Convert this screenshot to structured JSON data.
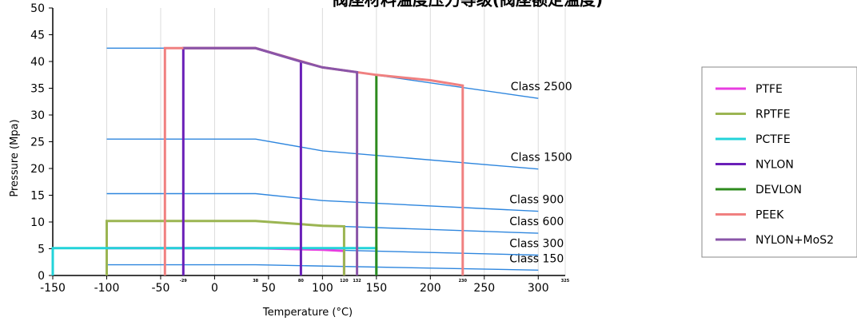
{
  "chart_data": {
    "type": "line",
    "title": "阀座材料温度压力等级(阀座额定温度)",
    "xlabel": "Temperature (°C)",
    "ylabel": "Pressure (Mpa)",
    "xlim": [
      -150,
      325
    ],
    "ylim": [
      0,
      50
    ],
    "x_ticks": [
      -150,
      -100,
      -50,
      0,
      50,
      100,
      150,
      200,
      250,
      300
    ],
    "y_ticks": [
      0,
      5,
      10,
      15,
      20,
      25,
      30,
      35,
      40,
      45,
      50
    ],
    "minor_tick_labels": [
      {
        "x": -29,
        "label": "-29"
      },
      {
        "x": 38,
        "label": "38"
      },
      {
        "x": 80,
        "label": "80"
      },
      {
        "x": 120,
        "label": "120"
      },
      {
        "x": 132,
        "label": "132"
      },
      {
        "x": 230,
        "label": "230"
      },
      {
        "x": 325,
        "label": "325"
      }
    ],
    "grid": "vertical",
    "class_color": "#2e86de",
    "class_lines": [
      {
        "name": "Class 150",
        "x": [
          -100,
          38,
          300
        ],
        "y": [
          2,
          2,
          1
        ]
      },
      {
        "name": "Class 300",
        "x": [
          -100,
          38,
          300
        ],
        "y": [
          5.1,
          5.1,
          3.8
        ]
      },
      {
        "name": "Class 600",
        "x": [
          -100,
          38,
          100,
          300
        ],
        "y": [
          10.2,
          10.2,
          9.3,
          7.9
        ]
      },
      {
        "name": "Class 900",
        "x": [
          -100,
          38,
          100,
          300
        ],
        "y": [
          15.3,
          15.3,
          14,
          12
        ]
      },
      {
        "name": "Class 1500",
        "x": [
          -100,
          38,
          100,
          300
        ],
        "y": [
          25.5,
          25.5,
          23.3,
          19.9
        ]
      },
      {
        "name": "Class 2500",
        "x": [
          -100,
          38,
          100,
          300
        ],
        "y": [
          42.5,
          42.5,
          38.9,
          33.1
        ]
      }
    ],
    "legend_position": "right",
    "series": [
      {
        "name": "PTFE",
        "color": "#e83de0",
        "x": [
          -100,
          -100,
          38,
          100,
          120,
          120
        ],
        "y": [
          0,
          5.1,
          5.1,
          4.8,
          4.6,
          0
        ]
      },
      {
        "name": "RPTFE",
        "color": "#9bb552",
        "x": [
          -100,
          -100,
          38,
          100,
          120,
          120
        ],
        "y": [
          0,
          10.2,
          10.2,
          9.3,
          9.2,
          0
        ]
      },
      {
        "name": "PCTFE",
        "color": "#22d3d9",
        "x": [
          -150,
          -150,
          150,
          150
        ],
        "y": [
          0,
          5.1,
          5.1,
          0
        ]
      },
      {
        "name": "NYLON",
        "color": "#6a1fb8",
        "x": [
          -29,
          -29,
          38,
          80,
          80
        ],
        "y": [
          0,
          42.5,
          42.5,
          40,
          0
        ]
      },
      {
        "name": "DEVLON",
        "color": "#2e8b1e",
        "x": [
          150,
          150
        ],
        "y": [
          0,
          37.5
        ]
      },
      {
        "name": "PEEK",
        "color": "#f08080",
        "x": [
          -46,
          -46,
          38,
          100,
          150,
          200,
          230,
          230
        ],
        "y": [
          0,
          42.5,
          42.5,
          38.9,
          37.5,
          36.5,
          35.5,
          0
        ]
      },
      {
        "name": "NYLON+MoS2",
        "color": "#8a55a8",
        "x": [
          -29,
          38,
          80,
          100,
          132,
          132
        ],
        "y": [
          42.5,
          42.5,
          40,
          38.9,
          38,
          0
        ]
      }
    ]
  }
}
